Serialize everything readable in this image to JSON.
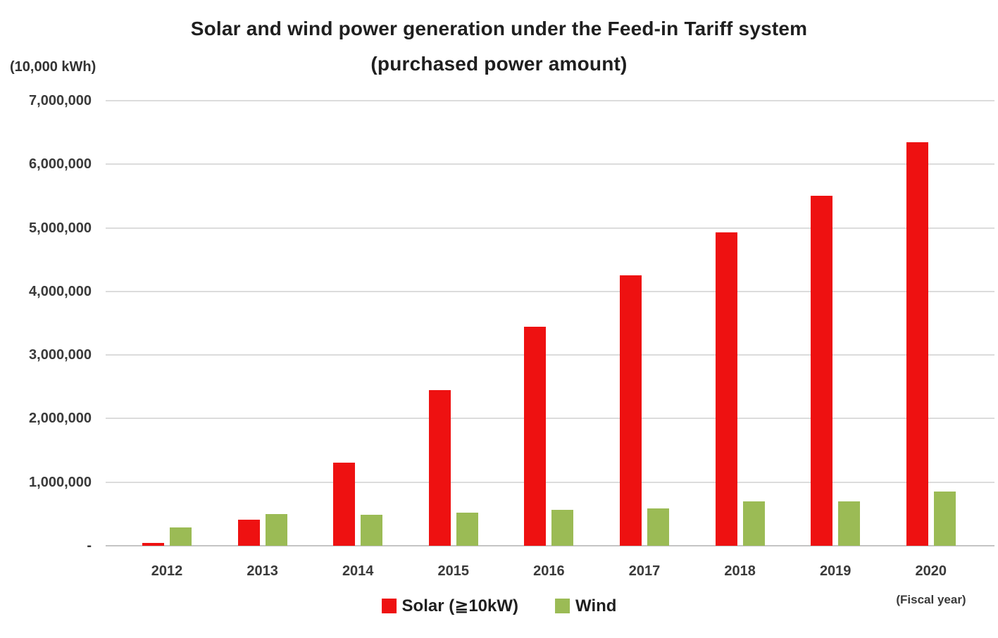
{
  "title": {
    "line1": "Solar and wind power generation under the Feed-in Tariff system",
    "line2": "(purchased power amount)"
  },
  "y_axis": {
    "unit_label": "(10,000 kWh)",
    "tick_labels": [
      "7,000,000",
      "6,000,000",
      "5,000,000",
      "4,000,000",
      "3,000,000",
      "2,000,000",
      "1,000,000",
      "-"
    ]
  },
  "x_axis": {
    "caption": "(Fiscal year)"
  },
  "legend": [
    {
      "label": "Solar (≧10kW)",
      "color": "#EE1111"
    },
    {
      "label": "Wind",
      "color": "#9BBB55"
    }
  ],
  "colors": {
    "solar": "#EE1111",
    "wind": "#9BBB55",
    "gridline": "#DCDCDC",
    "baseline": "#C4C4C4",
    "title_text": "#1F1F1F",
    "axis_text": "#3A3A3A"
  },
  "chart_data": {
    "type": "bar",
    "title": "Solar and wind power generation under the Feed-in Tariff system (purchased power amount)",
    "unit": "10,000 kWh",
    "categories": [
      "2012",
      "2013",
      "2014",
      "2015",
      "2016",
      "2017",
      "2018",
      "2019",
      "2020"
    ],
    "series": [
      {
        "name": "Solar (≧10kW)",
        "color": "#EE1111",
        "values": [
          40000,
          410000,
          1310000,
          2450000,
          3450000,
          4250000,
          4930000,
          5500000,
          6350000
        ]
      },
      {
        "name": "Wind",
        "color": "#9BBB55",
        "values": [
          290000,
          500000,
          490000,
          520000,
          560000,
          590000,
          700000,
          700000,
          850000
        ]
      }
    ],
    "xlabel": "Fiscal year",
    "ylabel": "(10,000 kWh)",
    "ylim": [
      0,
      7000000
    ],
    "y_tick_interval": 1000000,
    "grid": "horizontal",
    "legend_position": "bottom"
  }
}
